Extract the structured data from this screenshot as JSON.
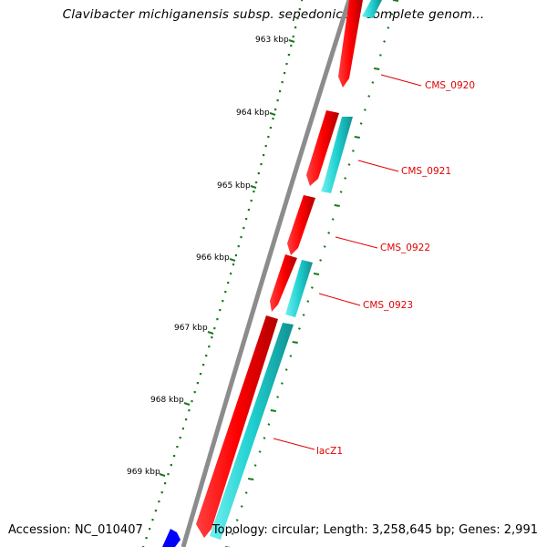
{
  "title": "Clavibacter michiganensis subsp. sepedonicus, complete genom...",
  "accession": "Accession: NC_010407",
  "topology": "Topology: circular; Length: 3,258,645 bp; Genes: 2,991",
  "ticks": [
    "963 kbp",
    "964 kbp",
    "965 kbp",
    "966 kbp",
    "967 kbp",
    "968 kbp",
    "969 kbp"
  ],
  "genes": [
    "CMS_0920",
    "CMS_0921",
    "CMS_0922",
    "CMS_0923",
    "lacZ1"
  ],
  "colors": {
    "forward_feature": "#ff0000",
    "reverse_feature": "#20d0d0",
    "other_feature": "#0000ff",
    "backbone": "#888888",
    "ruler": "#1a7a1a",
    "gene_label": "#e00000"
  }
}
